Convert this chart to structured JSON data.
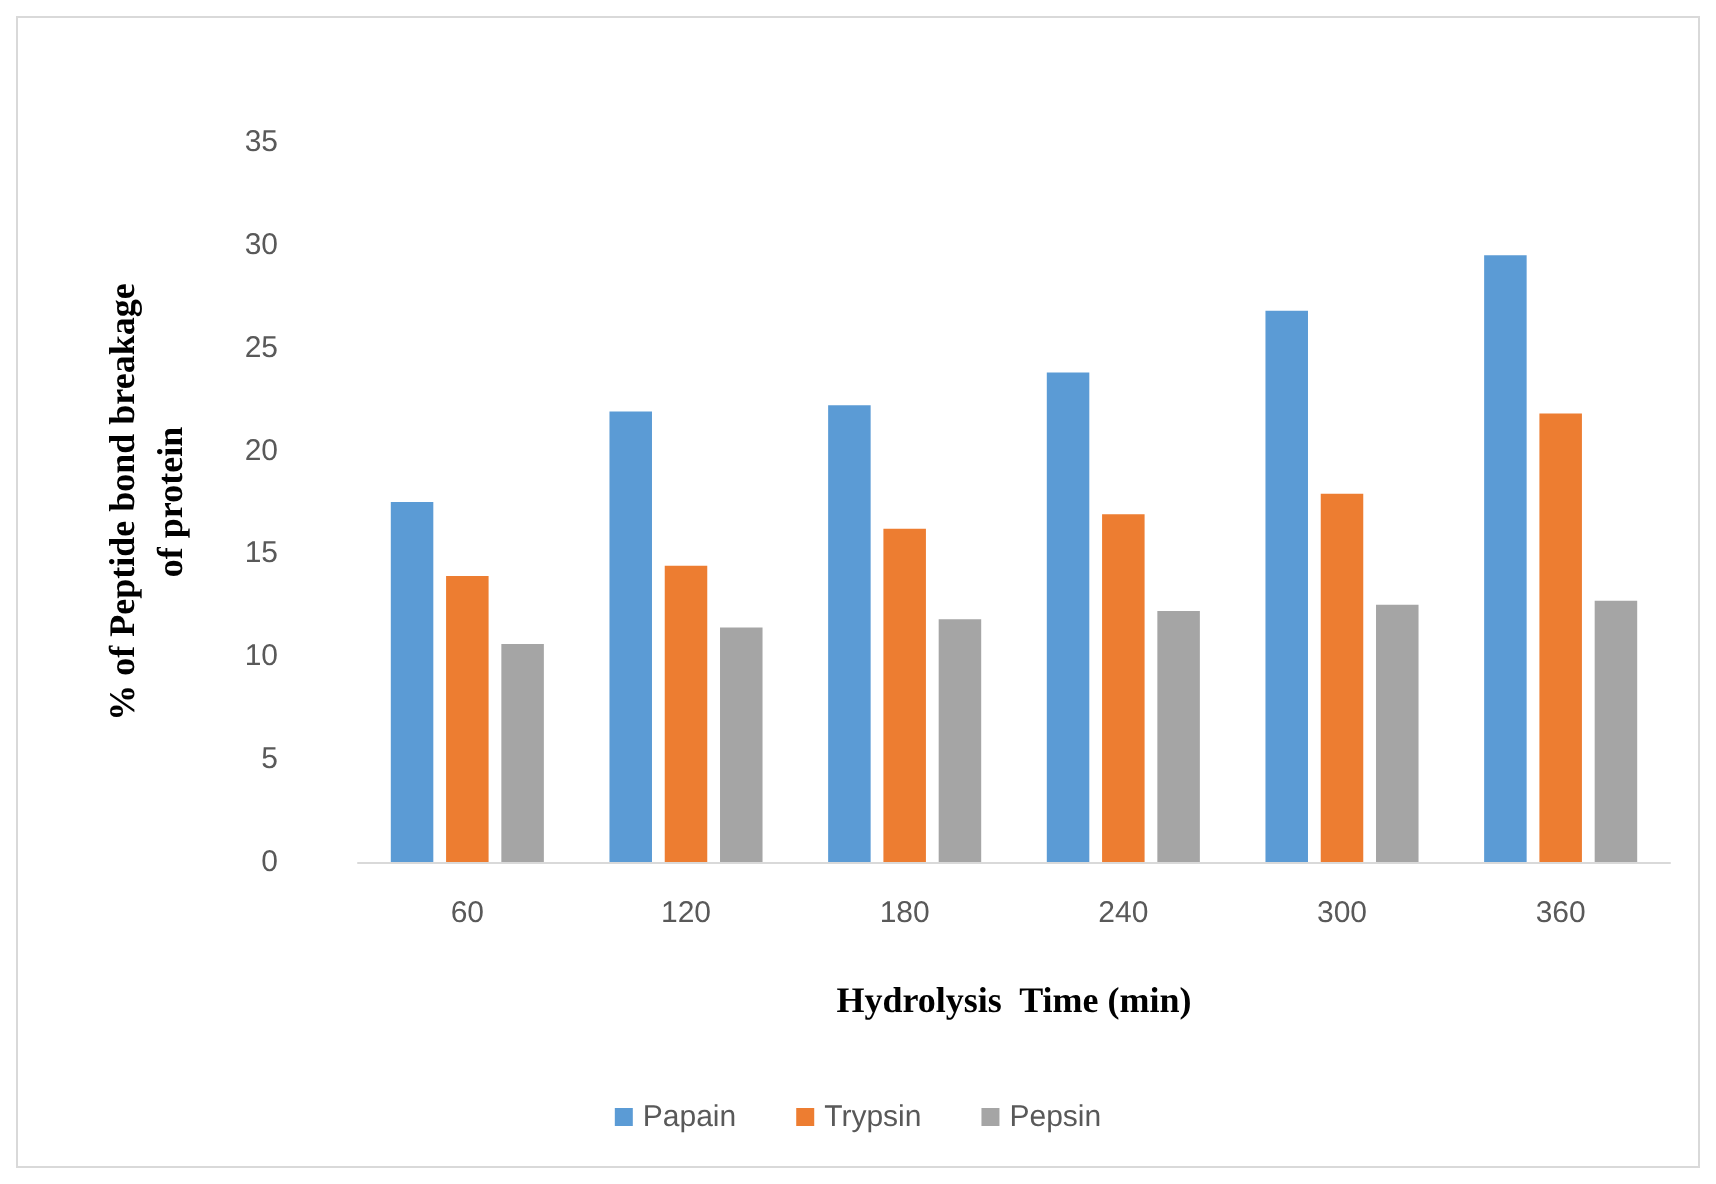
{
  "chart_data": {
    "type": "bar",
    "xlabel": "Hydrolysis  Time (min)",
    "ylabel": "% of Peptide bond breakage\nof protein",
    "categories": [
      "60",
      "120",
      "180",
      "240",
      "300",
      "360"
    ],
    "series": [
      {
        "name": "Papain",
        "color": "#5b9bd5",
        "values": [
          17.5,
          21.9,
          22.2,
          23.8,
          26.8,
          29.5
        ]
      },
      {
        "name": "Trypsin",
        "color": "#ed7d31",
        "values": [
          13.9,
          14.4,
          16.2,
          16.9,
          17.9,
          21.8
        ]
      },
      {
        "name": "Pepsin",
        "color": "#a5a5a5",
        "values": [
          10.6,
          11.4,
          11.8,
          12.2,
          12.5,
          12.7
        ]
      }
    ],
    "ylim": [
      0,
      35
    ],
    "yticks": [
      0,
      5,
      10,
      15,
      20,
      25,
      30,
      35
    ],
    "grid": false,
    "legend": "bottom"
  }
}
